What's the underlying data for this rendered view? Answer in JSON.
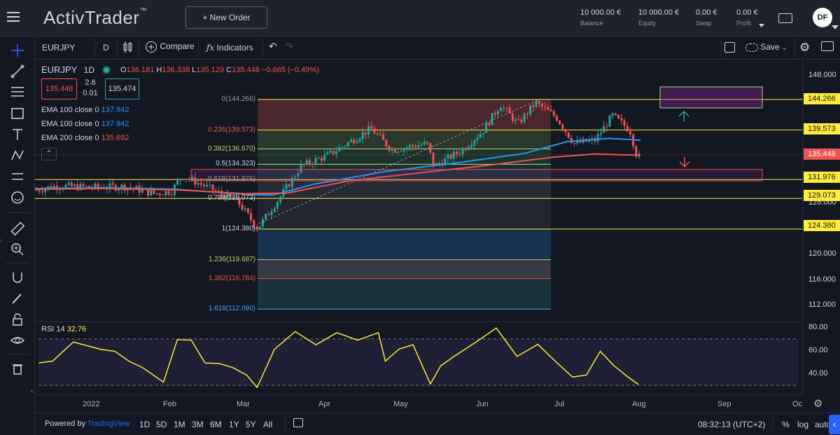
{
  "header": {
    "brand": "ActivTrader",
    "brand_tm": "™",
    "new_order": "+ New Order",
    "stats": [
      {
        "value": "10 000.00 €",
        "label": "Balance"
      },
      {
        "value": "10 000.00 €",
        "label": "Equity"
      },
      {
        "value": "0.00 €",
        "label": "Swap"
      },
      {
        "value": "0.00 €",
        "label": "Profit"
      }
    ],
    "avatar": "DF"
  },
  "toolbar": {
    "symbol": "EURJPY",
    "interval": "D",
    "compare": "Compare",
    "indicators": "Indicators",
    "save": "Save"
  },
  "legend": {
    "symbol": "EURJPY",
    "interval": "1D",
    "open_label": "O",
    "open": "136.181",
    "high_label": "H",
    "high": "136.338",
    "low_label": "L",
    "low": "135.129",
    "close_label": "C",
    "close": "135.448",
    "change": "−0.665 (−0.49%)",
    "sell": "135.448",
    "buy": "135.474",
    "spread_top": "2.6",
    "spread_bottom": "0.01",
    "ema": [
      {
        "label": "EMA 100 close 0",
        "value": "137.942",
        "color": "#2196f3"
      },
      {
        "label": "EMA 100 close 0",
        "value": "137.942",
        "color": "#2196f3"
      },
      {
        "label": "EMA 200 close 0",
        "value": "135.692",
        "color": "#ef5350"
      }
    ],
    "collapse": "⌃"
  },
  "fib": [
    {
      "label": "0(144.266)",
      "color": "#9598a1"
    },
    {
      "label": "0.236(139.573)",
      "color": "#ef5350"
    },
    {
      "label": "0.382(136.670)",
      "color": "#b5d56a"
    },
    {
      "label": "0.5(134.323)",
      "color": "#d1d4dc"
    },
    {
      "label": "0.618(131.976)",
      "color": "#9598a1"
    },
    {
      "label": "0.786(129.073)",
      "color": "#d1d4dc"
    },
    {
      "label": "1(124.380)",
      "color": "#d1d4dc"
    },
    {
      "label": "1.236(119.687)",
      "color": "#b5d56a"
    },
    {
      "label": "1.382(116.784)",
      "color": "#ef5350"
    },
    {
      "label": "1.618(112.090)",
      "color": "#42a5f5"
    }
  ],
  "price_axis": [
    "148.000",
    "128.000",
    "120.000",
    "116.000",
    "112.000"
  ],
  "price_tags": [
    {
      "value": "144.266",
      "color": "#ffeb3b"
    },
    {
      "value": "139.573",
      "color": "#ffeb3b"
    },
    {
      "value": "135.448",
      "color": "#ef5350"
    },
    {
      "value": "131.976",
      "color": "#ffeb3b"
    },
    {
      "value": "129.073",
      "color": "#ffeb3b"
    },
    {
      "value": "124.380",
      "color": "#ffeb3b"
    }
  ],
  "rsi": {
    "label": "RSI 14",
    "value": "32.76",
    "axis": [
      "80.00",
      "60.00",
      "40.00"
    ]
  },
  "time_axis": [
    "2022",
    "Feb",
    "Mar",
    "Apr",
    "May",
    "Jun",
    "Jul",
    "Aug",
    "Sep",
    "Oc"
  ],
  "bottom": {
    "powered": "Powered by",
    "powered_brand": "TradingView",
    "ranges": [
      "1D",
      "5D",
      "1M",
      "3M",
      "6M",
      "1Y",
      "5Y",
      "All"
    ],
    "clock": "08:32:13 (UTC+2)",
    "percent": "%",
    "log": "log",
    "auto": "auto"
  },
  "chart_data": {
    "type": "candlestick",
    "symbol": "EURJPY",
    "ema_100_last": 137.942,
    "ema_200_last": 135.692,
    "last_close": 135.448,
    "rsi_last": 32.76,
    "fib_levels": [
      144.266,
      139.573,
      136.67,
      134.323,
      131.976,
      129.073,
      124.38,
      119.687,
      116.784,
      112.09
    ]
  }
}
